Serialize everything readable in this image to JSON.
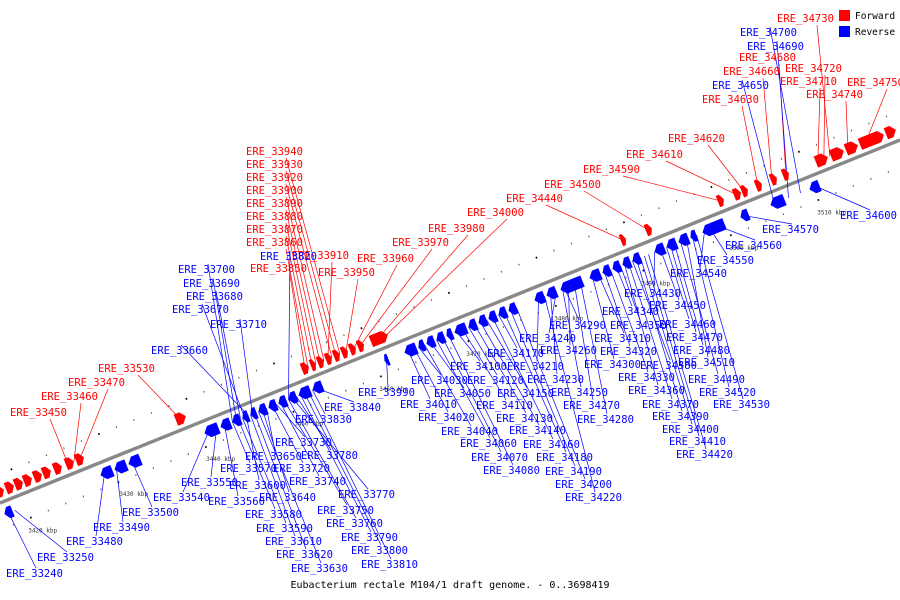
{
  "caption": "Eubacterium rectale M104/1 draft genome. - 0..3698419",
  "legend": [
    {
      "label": "Forward",
      "color": "#ff0000"
    },
    {
      "label": "Reverse",
      "color": "#0000ff"
    }
  ],
  "colors": {
    "forward": "#ff0000",
    "reverse": "#0000ff",
    "axis": "#888888",
    "tick_minor": "#555555",
    "tick_major": "#000000"
  },
  "scale_labels": [
    "3420 kbp",
    "3430 kbp",
    "3440 kbp",
    "3450 kbp",
    "3460 kbp",
    "3470 kbp",
    "3480 kbp",
    "3490 kbp",
    "3500 kbp",
    "3510 kbp"
  ],
  "forward_labels": [
    "ERE_33450",
    "ERE_33460",
    "ERE_33470",
    "ERE_33530",
    "ERE_33850",
    "ERE_33860",
    "ERE_33870",
    "ERE_33880",
    "ERE_33890",
    "ERE_33900",
    "ERE_33910",
    "ERE_33920",
    "ERE_33930",
    "ERE_33940",
    "ERE_33950",
    "ERE_33960",
    "ERE_33970",
    "ERE_33980",
    "ERE_34000",
    "ERE_34440",
    "ERE_34500",
    "ERE_34590",
    "ERE_34610",
    "ERE_34620",
    "ERE_34630",
    "ERE_34660",
    "ERE_34680",
    "ERE_34710",
    "ERE_34720",
    "ERE_34730",
    "ERE_34740",
    "ERE_34750"
  ],
  "reverse_labels": [
    "ERE_33240",
    "ERE_33250",
    "ERE_33480",
    "ERE_33490",
    "ERE_33500",
    "ERE_33540",
    "ERE_33550",
    "ERE_33560",
    "ERE_33570",
    "ERE_33580",
    "ERE_33590",
    "ERE_33600",
    "ERE_33610",
    "ERE_33620",
    "ERE_33630",
    "ERE_33640",
    "ERE_33650",
    "ERE_33660",
    "ERE_33670",
    "ERE_33680",
    "ERE_33690",
    "ERE_33700",
    "ERE_33710",
    "ERE_33720",
    "ERE_33730",
    "ERE_33740",
    "ERE_33750",
    "ERE_33760",
    "ERE_33770",
    "ERE_33780",
    "ERE_33790",
    "ERE_33800",
    "ERE_33810",
    "ERE_33820",
    "ERE_33830",
    "ERE_33840",
    "ERE_33990",
    "ERE_34010",
    "ERE_34020",
    "ERE_34030",
    "ERE_34040",
    "ERE_34050",
    "ERE_34060",
    "ERE_34070",
    "ERE_34080",
    "ERE_34100",
    "ERE_34110",
    "ERE_34120",
    "ERE_34130",
    "ERE_34140",
    "ERE_34150",
    "ERE_34160",
    "ERE_34170",
    "ERE_34180",
    "ERE_34190",
    "ERE_34200",
    "ERE_34210",
    "ERE_34220",
    "ERE_34230",
    "ERE_34240",
    "ERE_34250",
    "ERE_34260",
    "ERE_34270",
    "ERE_34280",
    "ERE_34290",
    "ERE_34300",
    "ERE_34310",
    "ERE_34320",
    "ERE_34330",
    "ERE_34340",
    "ERE_34350",
    "ERE_34360",
    "ERE_34370",
    "ERE_34380",
    "ERE_34390",
    "ERE_34400",
    "ERE_34410",
    "ERE_34420",
    "ERE_34430",
    "ERE_34450",
    "ERE_34460",
    "ERE_34470",
    "ERE_34480",
    "ERE_34490",
    "ERE_34510",
    "ERE_34520",
    "ERE_34530",
    "ERE_34540",
    "ERE_34550",
    "ERE_34560",
    "ERE_34570",
    "ERE_34600",
    "ERE_34650",
    "ERE_34690",
    "ERE_34700"
  ]
}
